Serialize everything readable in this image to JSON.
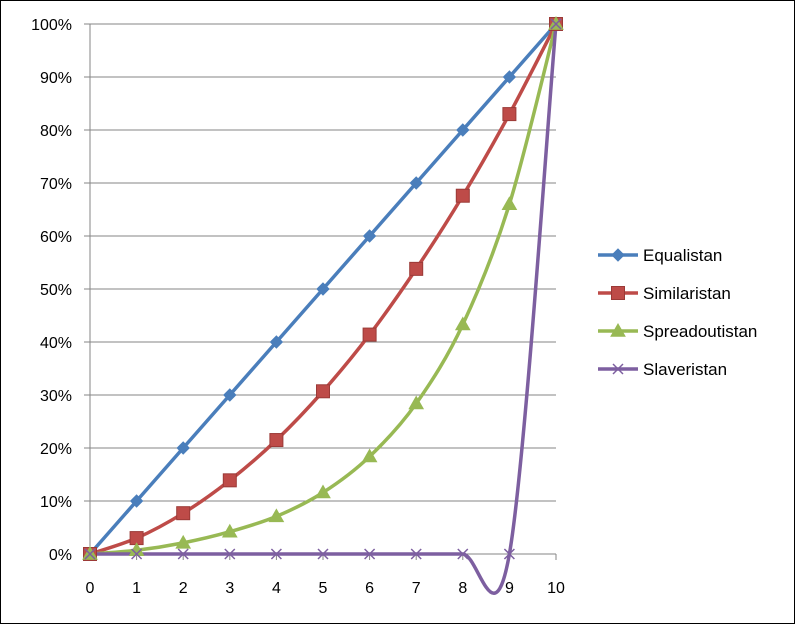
{
  "chart_data": {
    "type": "line",
    "title": "",
    "xlabel": "",
    "ylabel": "",
    "x": [
      0,
      1,
      2,
      3,
      4,
      5,
      6,
      7,
      8,
      9,
      10
    ],
    "x_tick_labels": [
      "0",
      "1",
      "2",
      "3",
      "4",
      "5",
      "6",
      "7",
      "8",
      "9",
      "10"
    ],
    "y_tick_labels": [
      "0%",
      "10%",
      "20%",
      "30%",
      "40%",
      "50%",
      "60%",
      "70%",
      "80%",
      "90%",
      "100%"
    ],
    "xlim": [
      0,
      10
    ],
    "ylim": [
      0,
      100
    ],
    "y_unit": "percent",
    "grid": "horizontal",
    "legend_position": "right",
    "series": [
      {
        "name": "Equalistan",
        "color": "#4a7ebb",
        "marker": "diamond",
        "values": [
          0,
          10,
          20,
          30,
          40,
          50,
          60,
          70,
          80,
          90,
          100
        ]
      },
      {
        "name": "Similaristan",
        "color": "#be4b48",
        "marker": "square",
        "values": [
          0,
          3,
          7.7,
          13.9,
          21.5,
          30.7,
          41.4,
          53.8,
          67.6,
          83,
          100
        ]
      },
      {
        "name": "Spreadoutistan",
        "color": "#98b954",
        "marker": "triangle",
        "values": [
          0,
          0.7,
          2.1,
          4.2,
          7.1,
          11.6,
          18.4,
          28.4,
          43.3,
          66,
          100
        ]
      },
      {
        "name": "Slaveristan",
        "color": "#7d5fa0",
        "marker": "x",
        "values": [
          0,
          0,
          0,
          0,
          0,
          0,
          0,
          0,
          0,
          0,
          100
        ]
      }
    ]
  }
}
